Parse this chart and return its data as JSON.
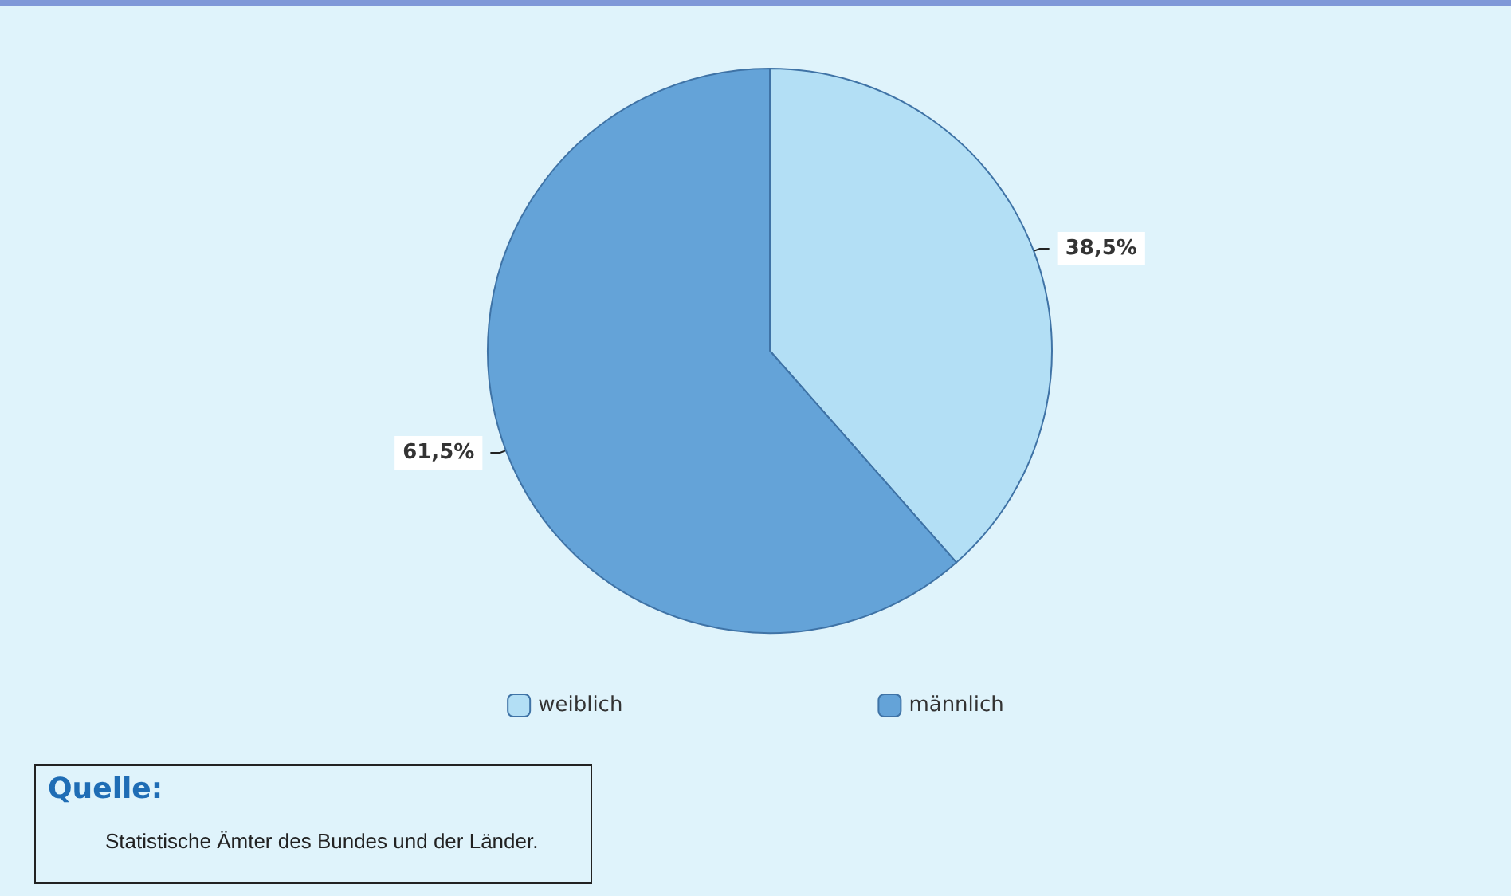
{
  "chart_data": {
    "type": "pie",
    "categories": [
      "weiblich",
      "männlich"
    ],
    "values": [
      38.5,
      61.5
    ],
    "colors": [
      "#b3dff5",
      "#64a3d8"
    ],
    "value_labels": [
      "38,5%",
      "61,5%"
    ],
    "legend": "bottom",
    "annotations": [
      "Quelle:",
      "Statistische Ämter des Bundes und der Länder."
    ]
  }
}
